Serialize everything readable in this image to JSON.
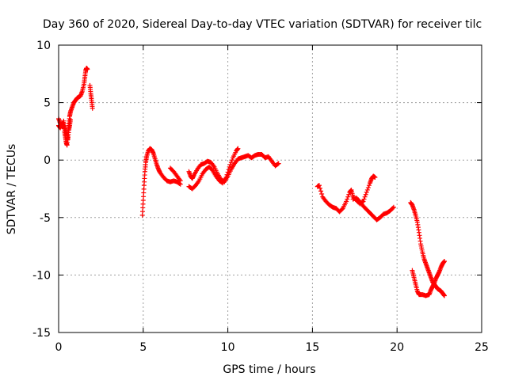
{
  "chart_data": {
    "type": "scatter",
    "title": "Day 360 of 2020, Sidereal Day-to-day VTEC variation (SDTVAR) for receiver tilc",
    "xlabel": "GPS time / hours",
    "ylabel": "SDTVAR / TECUs",
    "xlim": [
      0,
      25
    ],
    "ylim": [
      -15,
      10
    ],
    "xticks": [
      0,
      5,
      10,
      15,
      20,
      25
    ],
    "yticks": [
      -15,
      -10,
      -5,
      0,
      5,
      10
    ],
    "xtick_labels": [
      "0",
      "5",
      "10",
      "15",
      "20",
      "25"
    ],
    "ytick_labels": [
      "-15",
      "-10",
      "-5",
      "0",
      "5",
      "10"
    ],
    "grid": true,
    "marker": "+",
    "color": "#ff0000",
    "series": [
      {
        "segments": [
          [
            [
              0.0,
              3.6
            ],
            [
              0.1,
              3.2
            ],
            [
              0.2,
              2.9
            ],
            [
              0.3,
              3.4
            ],
            [
              0.35,
              2.5
            ],
            [
              0.4,
              2.0
            ],
            [
              0.45,
              1.5
            ],
            [
              0.5,
              1.3
            ],
            [
              0.55,
              2.2
            ],
            [
              0.6,
              3.0
            ],
            [
              0.65,
              3.8
            ],
            [
              0.7,
              4.2
            ],
            [
              0.8,
              4.6
            ],
            [
              0.9,
              5.0
            ],
            [
              1.0,
              5.2
            ],
            [
              1.1,
              5.4
            ],
            [
              1.2,
              5.5
            ],
            [
              1.3,
              5.6
            ],
            [
              1.4,
              6.0
            ],
            [
              1.5,
              6.6
            ],
            [
              1.55,
              7.2
            ],
            [
              1.6,
              7.8
            ],
            [
              1.65,
              8.0
            ],
            [
              1.7,
              7.9
            ]
          ],
          [
            [
              0.0,
              3.0
            ],
            [
              0.1,
              2.8
            ],
            [
              0.2,
              3.2
            ],
            [
              0.3,
              3.0
            ],
            [
              0.4,
              2.6
            ],
            [
              0.5,
              2.2
            ],
            [
              0.55,
              1.8
            ],
            [
              0.6,
              2.6
            ],
            [
              0.65,
              3.0
            ],
            [
              0.7,
              3.5
            ]
          ],
          [
            [
              1.85,
              6.5
            ],
            [
              1.9,
              5.8
            ],
            [
              1.95,
              5.2
            ],
            [
              2.0,
              4.5
            ]
          ]
        ]
      },
      {
        "segments": [
          [
            [
              4.95,
              -4.8
            ],
            [
              5.0,
              -3.5
            ],
            [
              5.05,
              -2.2
            ],
            [
              5.1,
              -1.0
            ],
            [
              5.15,
              -0.2
            ],
            [
              5.2,
              0.3
            ],
            [
              5.3,
              0.8
            ],
            [
              5.4,
              1.0
            ],
            [
              5.5,
              0.9
            ],
            [
              5.6,
              0.6
            ],
            [
              5.7,
              0.1
            ],
            [
              5.8,
              -0.4
            ],
            [
              5.9,
              -0.8
            ],
            [
              6.0,
              -1.1
            ],
            [
              6.2,
              -1.5
            ],
            [
              6.4,
              -1.8
            ],
            [
              6.6,
              -1.9
            ],
            [
              6.8,
              -1.8
            ],
            [
              7.0,
              -1.9
            ],
            [
              7.2,
              -2.1
            ]
          ],
          [
            [
              6.6,
              -0.7
            ],
            [
              6.8,
              -1.0
            ],
            [
              7.0,
              -1.4
            ],
            [
              7.2,
              -1.8
            ]
          ],
          [
            [
              7.7,
              -1.0
            ],
            [
              7.8,
              -1.4
            ],
            [
              7.9,
              -1.6
            ],
            [
              8.0,
              -1.3
            ],
            [
              8.2,
              -0.8
            ],
            [
              8.4,
              -0.4
            ],
            [
              8.6,
              -0.3
            ],
            [
              8.8,
              -0.1
            ],
            [
              9.0,
              -0.2
            ],
            [
              9.2,
              -0.6
            ],
            [
              9.4,
              -1.2
            ],
            [
              9.6,
              -1.7
            ],
            [
              9.8,
              -1.9
            ],
            [
              10.0,
              -1.4
            ],
            [
              10.2,
              -0.8
            ],
            [
              10.4,
              -0.3
            ],
            [
              10.6,
              0.1
            ],
            [
              10.8,
              0.2
            ],
            [
              11.0,
              0.3
            ],
            [
              11.2,
              0.4
            ],
            [
              11.4,
              0.2
            ],
            [
              11.6,
              0.4
            ],
            [
              11.8,
              0.5
            ],
            [
              12.0,
              0.5
            ],
            [
              12.2,
              0.2
            ],
            [
              12.4,
              0.3
            ],
            [
              12.6,
              -0.1
            ],
            [
              12.8,
              -0.5
            ],
            [
              13.0,
              -0.3
            ]
          ],
          [
            [
              7.7,
              -2.3
            ],
            [
              7.9,
              -2.5
            ],
            [
              8.1,
              -2.2
            ],
            [
              8.3,
              -1.8
            ],
            [
              8.5,
              -1.2
            ],
            [
              8.7,
              -0.8
            ],
            [
              8.9,
              -0.6
            ],
            [
              9.1,
              -0.9
            ],
            [
              9.3,
              -1.4
            ],
            [
              9.5,
              -1.8
            ],
            [
              9.7,
              -2.0
            ],
            [
              9.9,
              -1.5
            ],
            [
              10.1,
              -0.6
            ],
            [
              10.3,
              0.2
            ],
            [
              10.5,
              0.8
            ],
            [
              10.6,
              1.0
            ]
          ]
        ]
      },
      {
        "segments": [
          [
            [
              15.3,
              -2.3
            ],
            [
              15.4,
              -2.2
            ],
            [
              15.6,
              -3.2
            ],
            [
              15.8,
              -3.6
            ],
            [
              16.0,
              -3.9
            ],
            [
              16.2,
              -4.1
            ],
            [
              16.4,
              -4.2
            ],
            [
              16.6,
              -4.5
            ],
            [
              16.8,
              -4.2
            ],
            [
              17.0,
              -3.6
            ],
            [
              17.2,
              -2.8
            ],
            [
              17.3,
              -2.6
            ],
            [
              17.4,
              -3.2
            ],
            [
              17.6,
              -3.5
            ],
            [
              17.8,
              -3.8
            ],
            [
              18.0,
              -3.6
            ],
            [
              18.2,
              -2.8
            ],
            [
              18.4,
              -2.0
            ],
            [
              18.5,
              -1.6
            ],
            [
              18.6,
              -1.4
            ],
            [
              18.7,
              -1.5
            ]
          ],
          [
            [
              17.4,
              -3.4
            ],
            [
              17.6,
              -3.3
            ],
            [
              17.8,
              -3.6
            ],
            [
              18.0,
              -4.0
            ],
            [
              18.2,
              -4.3
            ],
            [
              18.4,
              -4.6
            ],
            [
              18.6,
              -4.9
            ],
            [
              18.8,
              -5.2
            ],
            [
              19.0,
              -5.0
            ],
            [
              19.2,
              -4.7
            ],
            [
              19.4,
              -4.6
            ],
            [
              19.6,
              -4.4
            ],
            [
              19.8,
              -4.1
            ]
          ]
        ]
      },
      {
        "segments": [
          [
            [
              20.8,
              -3.7
            ],
            [
              20.9,
              -3.9
            ],
            [
              21.0,
              -4.3
            ],
            [
              21.1,
              -4.8
            ],
            [
              21.2,
              -5.4
            ],
            [
              21.3,
              -6.3
            ],
            [
              21.4,
              -7.3
            ],
            [
              21.5,
              -8.0
            ],
            [
              21.6,
              -8.6
            ],
            [
              21.7,
              -9.0
            ],
            [
              21.8,
              -9.4
            ],
            [
              21.9,
              -9.8
            ],
            [
              22.0,
              -10.2
            ],
            [
              22.1,
              -10.6
            ],
            [
              22.2,
              -10.8
            ],
            [
              22.3,
              -11.0
            ],
            [
              22.4,
              -11.2
            ],
            [
              22.5,
              -11.3
            ],
            [
              22.6,
              -11.4
            ],
            [
              22.7,
              -11.6
            ],
            [
              22.8,
              -11.8
            ]
          ],
          [
            [
              20.9,
              -9.6
            ],
            [
              21.0,
              -10.2
            ],
            [
              21.1,
              -10.8
            ],
            [
              21.2,
              -11.4
            ],
            [
              21.3,
              -11.7
            ],
            [
              21.5,
              -11.7
            ],
            [
              21.7,
              -11.8
            ],
            [
              21.9,
              -11.7
            ],
            [
              22.0,
              -11.3
            ],
            [
              22.1,
              -11.0
            ],
            [
              22.2,
              -10.7
            ],
            [
              22.3,
              -10.3
            ],
            [
              22.4,
              -10.0
            ],
            [
              22.5,
              -9.7
            ],
            [
              22.6,
              -9.3
            ],
            [
              22.7,
              -9.0
            ],
            [
              22.8,
              -8.8
            ]
          ]
        ]
      }
    ]
  }
}
